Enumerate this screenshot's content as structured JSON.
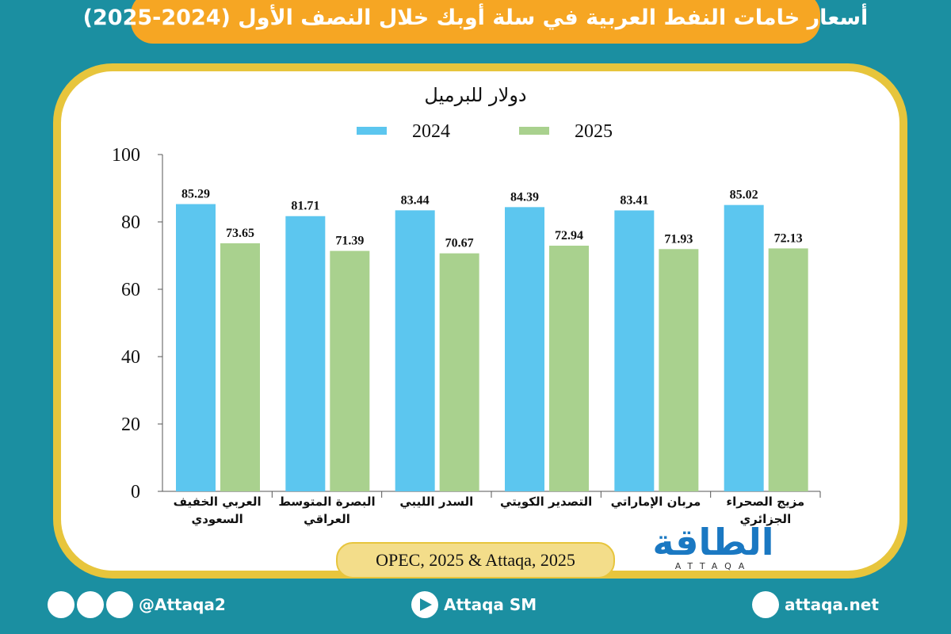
{
  "chart_data": {
    "type": "bar",
    "title": "أسعار خامات النفط العربية في سلة أوبك خلال النصف الأول (2024-2025)",
    "subtitle": "دولار للبرميل",
    "categories": [
      "العربي الخفيف السعودي",
      "البصرة المتوسط العراقي",
      "السدر الليبي",
      "التصدير الكويتي",
      "مربان الإماراتي",
      "مزيج الصحراء الجزائري"
    ],
    "series": [
      {
        "name": "2024",
        "color": "#5cc6ef",
        "values": [
          85.29,
          81.71,
          83.44,
          84.39,
          83.41,
          85.02
        ]
      },
      {
        "name": "2025",
        "color": "#a9d18e",
        "values": [
          73.65,
          71.39,
          70.67,
          72.94,
          71.93,
          72.13
        ]
      }
    ],
    "ylim": [
      0,
      100
    ],
    "yticks": [
      0,
      20,
      40,
      60,
      80,
      100
    ],
    "source": "OPEC, 2025 & Attaqa, 2025"
  },
  "logo": {
    "arabic": "الطاقة",
    "latin": "ATTAQA"
  },
  "footer": {
    "social": "@Attaqa2",
    "youtube": "Attaqa SM",
    "website": "attaqa.net"
  }
}
